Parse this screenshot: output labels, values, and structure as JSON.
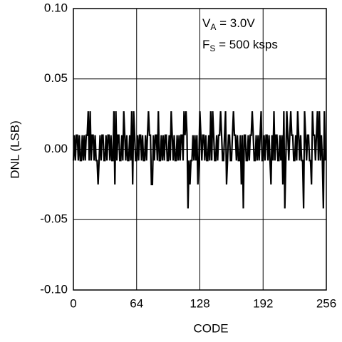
{
  "chart_data": {
    "type": "line",
    "xlabel": "CODE",
    "ylabel": "DNL (LSB)",
    "annotations": [
      {
        "main": "V",
        "sub": "A",
        "tail": " = 3.0V"
      },
      {
        "main": "F",
        "sub": "S",
        "tail": " = 500 ksps"
      }
    ],
    "xlim": [
      0,
      256
    ],
    "xticks": [
      0,
      64,
      128,
      192,
      256
    ],
    "ylim": [
      -0.1,
      0.1
    ],
    "yticks": [
      {
        "value": 0.1,
        "label": "0.10"
      },
      {
        "value": 0.05,
        "label": "0.05"
      },
      {
        "value": 0,
        "label": "0.00"
      },
      {
        "value": -0.05,
        "label": "-0.05"
      },
      {
        "value": -0.1,
        "label": "-0.10"
      }
    ],
    "grid": true,
    "series": [
      {
        "color": "#000000",
        "x": [
          0,
          1,
          2,
          3,
          4,
          5,
          6,
          7,
          8,
          9,
          10,
          11,
          12,
          13,
          14,
          15,
          16,
          17,
          18,
          19,
          20,
          21,
          22,
          23,
          24,
          25,
          26,
          27,
          28,
          29,
          30,
          31,
          32,
          33,
          34,
          35,
          36,
          37,
          38,
          39,
          40,
          41,
          42,
          43,
          44,
          45,
          46,
          47,
          48,
          49,
          50,
          51,
          52,
          53,
          54,
          55,
          56,
          57,
          58,
          59,
          60,
          61,
          62,
          63,
          64,
          65,
          66,
          67,
          68,
          69,
          70,
          71,
          72,
          73,
          74,
          75,
          76,
          77,
          78,
          79,
          80,
          81,
          82,
          83,
          84,
          85,
          86,
          87,
          88,
          89,
          90,
          91,
          92,
          93,
          94,
          95,
          96,
          97,
          98,
          99,
          100,
          101,
          102,
          103,
          104,
          105,
          106,
          107,
          108,
          109,
          110,
          111,
          112,
          113,
          114,
          115,
          116,
          117,
          118,
          119,
          120,
          121,
          122,
          123,
          124,
          125,
          126,
          127,
          128,
          129,
          130,
          131,
          132,
          133,
          134,
          135,
          136,
          137,
          138,
          139,
          140,
          141,
          142,
          143,
          144,
          145,
          146,
          147,
          148,
          149,
          150,
          151,
          152,
          153,
          154,
          155,
          156,
          157,
          158,
          159,
          160,
          161,
          162,
          163,
          164,
          165,
          166,
          167,
          168,
          169,
          170,
          171,
          172,
          173,
          174,
          175,
          176,
          177,
          178,
          179,
          180,
          181,
          182,
          183,
          184,
          185,
          186,
          187,
          188,
          189,
          190,
          191,
          192,
          193,
          194,
          195,
          196,
          197,
          198,
          199,
          200,
          201,
          202,
          203,
          204,
          205,
          206,
          207,
          208,
          209,
          210,
          211,
          212,
          213,
          214,
          215,
          216,
          217,
          218,
          219,
          220,
          221,
          222,
          223,
          224,
          225,
          226,
          227,
          228,
          229,
          230,
          231,
          232,
          233,
          234,
          235,
          236,
          237,
          238,
          239,
          240,
          241,
          242,
          243,
          244,
          245,
          246,
          247,
          248,
          249,
          250,
          251,
          252,
          253,
          254,
          255
        ],
        "values": [
          -0.008,
          0.01,
          -0.008,
          0.01,
          0.01,
          -0.008,
          0.01,
          -0.008,
          -0.008,
          0.01,
          -0.008,
          0.01,
          -0.008,
          0.01,
          0.01,
          0.027,
          -0.008,
          0.027,
          -0.008,
          0.01,
          0.01,
          -0.008,
          0.01,
          -0.008,
          -0.008,
          -0.025,
          -0.008,
          0.01,
          -0.008,
          0.01,
          0.01,
          -0.008,
          -0.008,
          0.01,
          -0.008,
          0.01,
          0.01,
          -0.008,
          0.01,
          -0.008,
          -0.008,
          0.027,
          -0.025,
          0.027,
          -0.008,
          0.01,
          0.01,
          -0.008,
          -0.008,
          0.01,
          -0.008,
          0.027,
          0.01,
          -0.008,
          0.01,
          -0.008,
          -0.008,
          0.01,
          -0.008,
          0.027,
          -0.025,
          0.027,
          0.01,
          -0.008,
          -0.008,
          0.01,
          -0.008,
          0.01,
          0.01,
          -0.008,
          0.01,
          -0.008,
          -0.008,
          0.01,
          -0.008,
          0.01,
          0.027,
          0.01,
          0.01,
          -0.025,
          -0.025,
          0.01,
          -0.008,
          0.01,
          0.01,
          -0.008,
          0.027,
          -0.008,
          -0.008,
          0.01,
          -0.008,
          0.01,
          -0.008,
          0.01,
          0.01,
          -0.008,
          -0.008,
          0.01,
          -0.008,
          0.027,
          0.01,
          -0.008,
          0.01,
          -0.008,
          -0.008,
          0.01,
          -0.008,
          0.01,
          -0.008,
          0.01,
          0.01,
          -0.008,
          0.027,
          0.01,
          0.027,
          0.01,
          -0.042,
          -0.008,
          -0.025,
          -0.008,
          -0.008,
          0.01,
          -0.008,
          0.01,
          -0.008,
          0.01,
          -0.025,
          -0.008,
          0.027,
          0.01,
          -0.008,
          0.01,
          0.01,
          -0.008,
          0.01,
          -0.008,
          -0.008,
          0.01,
          -0.008,
          0.027,
          -0.008,
          0.027,
          0.01,
          -0.008,
          -0.008,
          0.01,
          -0.008,
          0.01,
          0.01,
          0.027,
          0.01,
          -0.008,
          -0.008,
          0.01,
          0.027,
          -0.025,
          -0.008,
          0.01,
          0.01,
          -0.008,
          -0.008,
          0.01,
          0.027,
          0.01,
          0.01,
          -0.008,
          0.01,
          -0.008,
          -0.008,
          0.01,
          -0.025,
          0.01,
          -0.042,
          0.01,
          0.01,
          -0.008,
          -0.008,
          0.01,
          -0.008,
          0.01,
          0.01,
          0.027,
          0.01,
          -0.008,
          -0.008,
          0.01,
          -0.008,
          0.01,
          -0.008,
          0.01,
          0.027,
          -0.008,
          -0.008,
          0.01,
          -0.008,
          0.01,
          0.01,
          -0.008,
          0.01,
          -0.008,
          -0.025,
          0.01,
          -0.008,
          0.027,
          -0.008,
          0.01,
          0.01,
          -0.008,
          -0.008,
          0.01,
          -0.008,
          0.01,
          -0.025,
          0.027,
          -0.042,
          -0.008,
          0.027,
          0.01,
          -0.008,
          0.01,
          0.027,
          0.01,
          0.01,
          -0.008,
          -0.008,
          0.01,
          -0.008,
          0.027,
          0.01,
          -0.008,
          0.01,
          -0.008,
          -0.008,
          -0.042,
          0.027,
          0.01,
          -0.008,
          0.01,
          0.01,
          -0.008,
          -0.008,
          -0.025,
          0.027,
          0.01,
          0.01,
          -0.008,
          0.01,
          0.027,
          -0.008,
          0.027,
          -0.008,
          0.01,
          -0.008,
          -0.042,
          0.027,
          -0.008
        ]
      }
    ]
  }
}
